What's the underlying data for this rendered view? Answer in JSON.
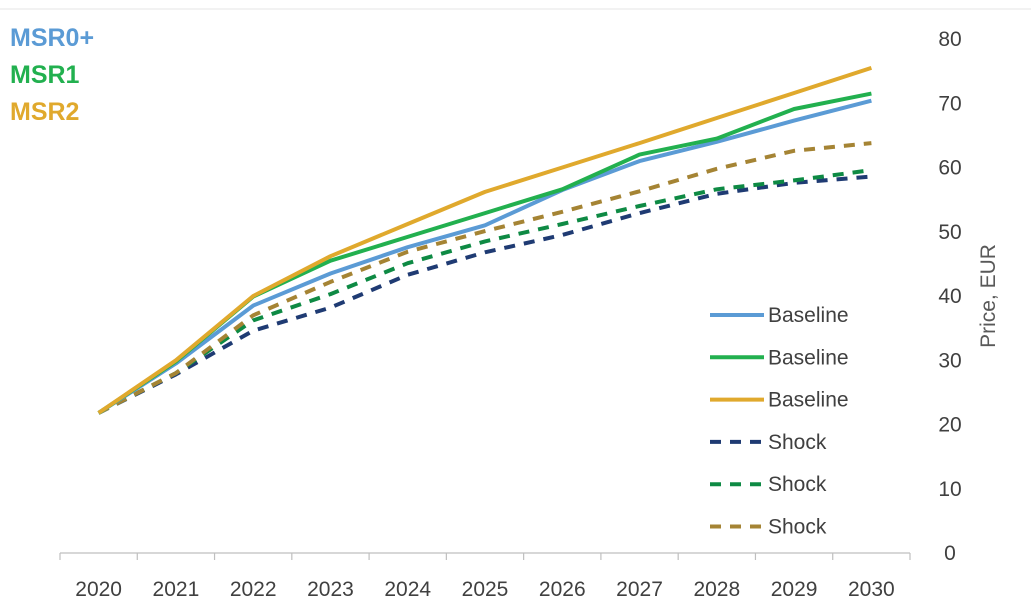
{
  "chart_data": {
    "type": "line",
    "x": [
      2020,
      2021,
      2022,
      2023,
      2024,
      2025,
      2026,
      2027,
      2028,
      2029,
      2030
    ],
    "xlabels": [
      "2020",
      "2021",
      "2022",
      "2023",
      "2024",
      "2025",
      "2026",
      "2027",
      "2028",
      "2029",
      "2030"
    ],
    "ylabel": "Price, EUR",
    "ylim": [
      0,
      80
    ],
    "yticks": [
      "0",
      "10",
      "20",
      "30",
      "40",
      "50",
      "60",
      "70",
      "80"
    ],
    "y_axis_side": "right",
    "grid": false,
    "legend_placement": "bottom-right",
    "group_labels": [
      {
        "text": "MSR0+",
        "color": "#5b9bd5"
      },
      {
        "text": "MSR1",
        "color": "#22b04f"
      },
      {
        "text": "MSR2",
        "color": "#e0a92d"
      }
    ],
    "series": [
      {
        "name": "Baseline",
        "group": "MSR0+",
        "dash": "solid",
        "color": "#5b9bd5",
        "values": [
          21.8,
          29.5,
          38.5,
          43.5,
          47.6,
          51,
          56.5,
          61,
          64,
          67.3,
          70.4
        ]
      },
      {
        "name": "Baseline",
        "group": "MSR1",
        "dash": "solid",
        "color": "#22b04f",
        "values": [
          21.8,
          29.8,
          39.9,
          45.5,
          49.2,
          52.9,
          56.6,
          62,
          64.5,
          69.1,
          71.5
        ]
      },
      {
        "name": "Baseline",
        "group": "MSR2",
        "dash": "solid",
        "color": "#e0a92d",
        "values": [
          21.8,
          30,
          40,
          46.2,
          51.2,
          56.2,
          60,
          63.8,
          67.7,
          71.6,
          75.5
        ]
      },
      {
        "name": "Shock",
        "group": "MSR0+",
        "dash": "dashed",
        "color": "#1f3b73",
        "values": [
          21.8,
          27.8,
          34.6,
          38.2,
          43.3,
          46.8,
          49.5,
          52.9,
          55.9,
          57.6,
          58.6
        ]
      },
      {
        "name": "Shock",
        "group": "MSR1",
        "dash": "dashed",
        "color": "#0e8a44",
        "values": [
          21.8,
          28,
          36.2,
          40.3,
          45.1,
          48.5,
          51.2,
          54,
          56.6,
          58,
          59.6
        ]
      },
      {
        "name": "Shock",
        "group": "MSR2",
        "dash": "dashed",
        "color": "#a58434",
        "values": [
          21.8,
          28,
          37,
          42.2,
          46.9,
          50.1,
          53.1,
          56.3,
          59.8,
          62.6,
          63.8
        ]
      }
    ]
  }
}
